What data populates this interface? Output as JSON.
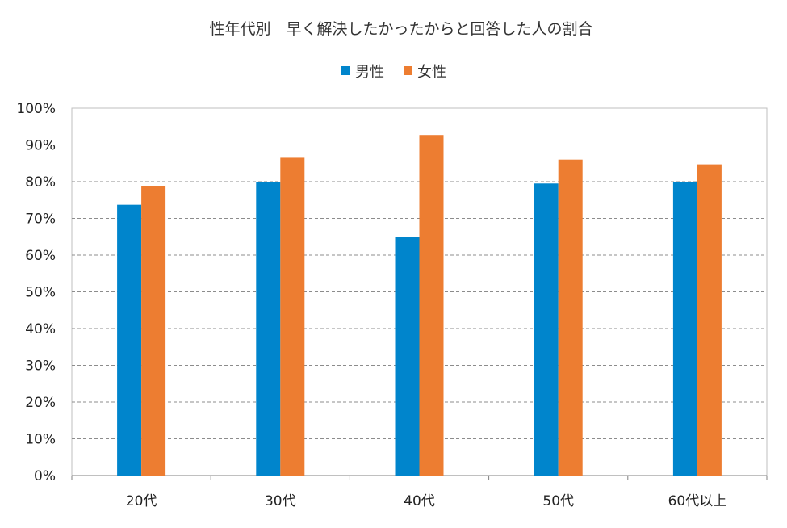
{
  "chart_data": {
    "type": "bar",
    "title": "性年代別　早く解決したかったからと回答した人の割合",
    "categories": [
      "20代",
      "30代",
      "40代",
      "50代",
      "60代以上"
    ],
    "series": [
      {
        "name": "男性",
        "color": "#0085CC",
        "values": [
          73.7,
          80.0,
          65.0,
          79.5,
          80.0
        ]
      },
      {
        "name": "女性",
        "color": "#ED7D31",
        "values": [
          78.8,
          86.5,
          92.7,
          86.0,
          84.7
        ]
      }
    ],
    "yticks": [
      "0%",
      "10%",
      "20%",
      "30%",
      "40%",
      "50%",
      "60%",
      "70%",
      "80%",
      "90%",
      "100%"
    ],
    "ylim": [
      0,
      100
    ],
    "grid": true,
    "legend_position": "top-center",
    "xlabel": "",
    "ylabel": ""
  }
}
